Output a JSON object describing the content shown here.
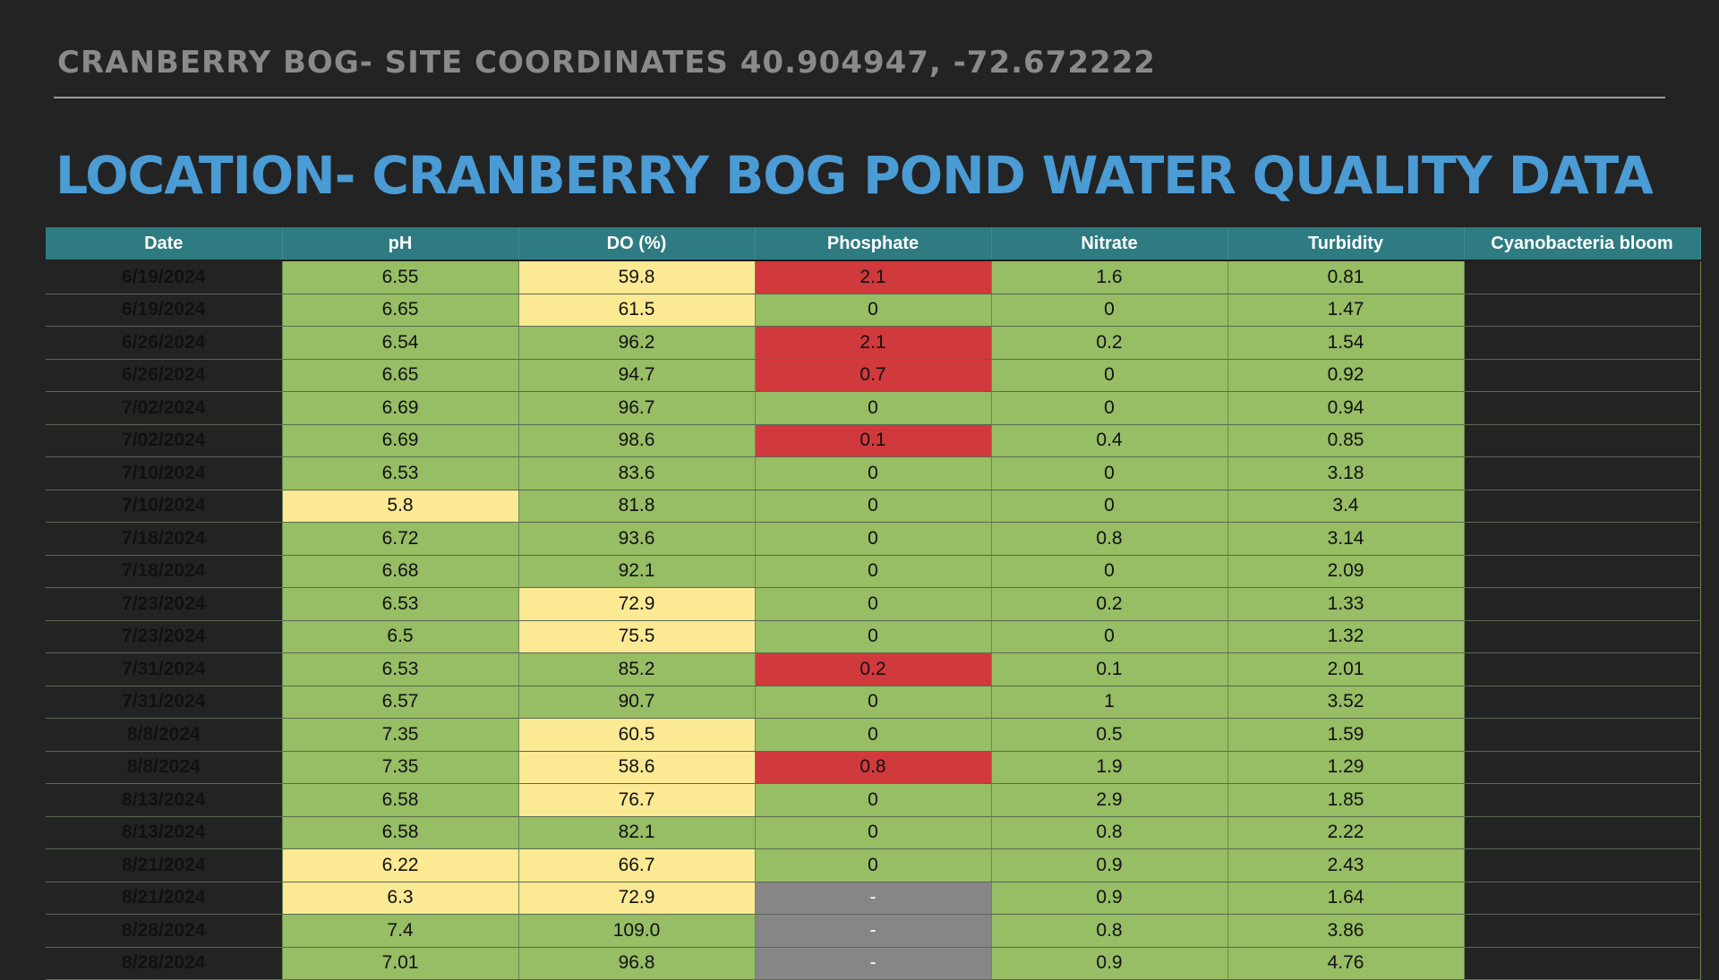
{
  "header": {
    "subtitle": "CRANBERRY BOG- SITE COORDINATES 40.904947, -72.672222",
    "title": "LOCATION- CRANBERRY BOG POND WATER QUALITY DATA"
  },
  "colors": {
    "green": "#97bd65",
    "yellow": "#fbe993",
    "red": "#d03a3c",
    "gray": "#868686",
    "header": "#2f7b82",
    "title": "#4b9bd4"
  },
  "table": {
    "columns": [
      "Date",
      "pH",
      "DO (%)",
      "Phosphate",
      "Nitrate",
      "Turbidity",
      "Cyanobacteria bloom"
    ],
    "rows": [
      [
        "6/19/2024",
        "6.55",
        "59.8",
        "2.1",
        "1.6",
        "0.81",
        ""
      ],
      [
        "6/19/2024",
        "6.65",
        "61.5",
        "0",
        "0",
        "1.47",
        ""
      ],
      [
        "6/26/2024",
        "6.54",
        "96.2",
        "2.1",
        "0.2",
        "1.54",
        ""
      ],
      [
        "6/26/2024",
        "6.65",
        "94.7",
        "0.7",
        "0",
        "0.92",
        ""
      ],
      [
        "7/02/2024",
        "6.69",
        "96.7",
        "0",
        "0",
        "0.94",
        ""
      ],
      [
        "7/02/2024",
        "6.69",
        "98.6",
        "0.1",
        "0.4",
        "0.85",
        ""
      ],
      [
        "7/10/2024",
        "6.53",
        "83.6",
        "0",
        "0",
        "3.18",
        ""
      ],
      [
        "7/10/2024",
        "5.8",
        "81.8",
        "0",
        "0",
        "3.4",
        ""
      ],
      [
        "7/18/2024",
        "6.72",
        "93.6",
        "0",
        "0.8",
        "3.14",
        ""
      ],
      [
        "7/18/2024",
        "6.68",
        "92.1",
        "0",
        "0",
        "2.09",
        ""
      ],
      [
        "7/23/2024",
        "6.53",
        "72.9",
        "0",
        "0.2",
        "1.33",
        ""
      ],
      [
        "7/23/2024",
        "6.5",
        "75.5",
        "0",
        "0",
        "1.32",
        ""
      ],
      [
        "7/31/2024",
        "6.53",
        "85.2",
        "0.2",
        "0.1",
        "2.01",
        ""
      ],
      [
        "7/31/2024",
        "6.57",
        "90.7",
        "0",
        "1",
        "3.52",
        ""
      ],
      [
        "8/8/2024",
        "7.35",
        "60.5",
        "0",
        "0.5",
        "1.59",
        ""
      ],
      [
        "8/8/2024",
        "7.35",
        "58.6",
        "0.8",
        "1.9",
        "1.29",
        ""
      ],
      [
        "8/13/2024",
        "6.58",
        "76.7",
        "0",
        "2.9",
        "1.85",
        ""
      ],
      [
        "8/13/2024",
        "6.58",
        "82.1",
        "0",
        "0.8",
        "2.22",
        ""
      ],
      [
        "8/21/2024",
        "6.22",
        "66.7",
        "0",
        "0.9",
        "2.43",
        ""
      ],
      [
        "8/21/2024",
        "6.3",
        "72.9",
        "-",
        "0.9",
        "1.64",
        ""
      ],
      [
        "8/28/2024",
        "7.4",
        "109.0",
        "-",
        "0.8",
        "3.86",
        ""
      ],
      [
        "8/28/2024",
        "7.01",
        "96.8",
        "-",
        "0.9",
        "4.76",
        ""
      ]
    ],
    "cell_status": [
      [
        "g",
        "y",
        "r",
        "g",
        "g"
      ],
      [
        "g",
        "y",
        "g",
        "g",
        "g"
      ],
      [
        "g",
        "g",
        "r",
        "g",
        "g"
      ],
      [
        "g",
        "g",
        "r",
        "g",
        "g"
      ],
      [
        "g",
        "g",
        "g",
        "g",
        "g"
      ],
      [
        "g",
        "g",
        "r",
        "g",
        "g"
      ],
      [
        "g",
        "g",
        "g",
        "g",
        "g"
      ],
      [
        "y",
        "g",
        "g",
        "g",
        "g"
      ],
      [
        "g",
        "g",
        "g",
        "g",
        "g"
      ],
      [
        "g",
        "g",
        "g",
        "g",
        "g"
      ],
      [
        "g",
        "y",
        "g",
        "g",
        "g"
      ],
      [
        "g",
        "y",
        "g",
        "g",
        "g"
      ],
      [
        "g",
        "g",
        "r",
        "g",
        "g"
      ],
      [
        "g",
        "g",
        "g",
        "g",
        "g"
      ],
      [
        "g",
        "y",
        "g",
        "g",
        "g"
      ],
      [
        "g",
        "y",
        "r",
        "g",
        "g"
      ],
      [
        "g",
        "y",
        "g",
        "g",
        "g"
      ],
      [
        "g",
        "g",
        "g",
        "g",
        "g"
      ],
      [
        "y",
        "y",
        "g",
        "g",
        "g"
      ],
      [
        "y",
        "y",
        "x",
        "g",
        "g"
      ],
      [
        "g",
        "g",
        "x",
        "g",
        "g"
      ],
      [
        "g",
        "g",
        "x",
        "g",
        "g"
      ]
    ]
  }
}
